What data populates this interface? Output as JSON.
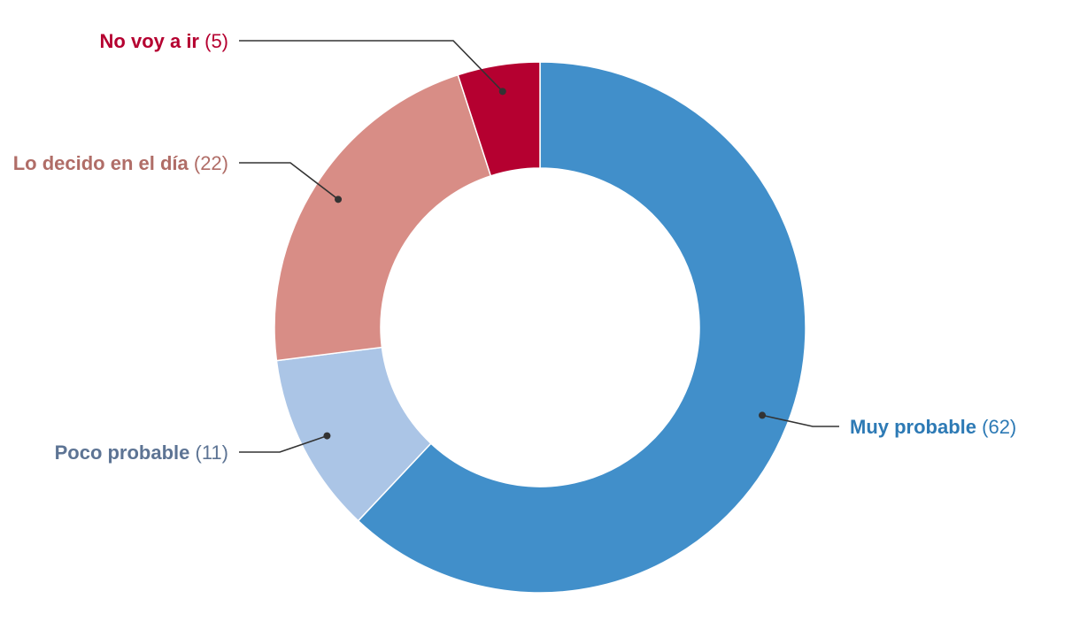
{
  "chart_data": {
    "type": "pie",
    "variant": "donut",
    "legend": "none",
    "slices": [
      {
        "label": "Muy probable",
        "value": 62,
        "value_label": "(62)",
        "color": "#418fca",
        "text_color": "#2d7ab5"
      },
      {
        "label": "Poco probable",
        "value": 11,
        "value_label": "(11)",
        "color": "#abc5e6",
        "text_color": "#5d7494"
      },
      {
        "label": "Lo decido en el día",
        "value": 22,
        "value_label": "(22)",
        "color": "#d88d86",
        "text_color": "#b06d67"
      },
      {
        "label": "No voy a ir",
        "value": 5,
        "value_label": "(5)",
        "color": "#b50030",
        "text_color": "#b50030"
      }
    ]
  }
}
